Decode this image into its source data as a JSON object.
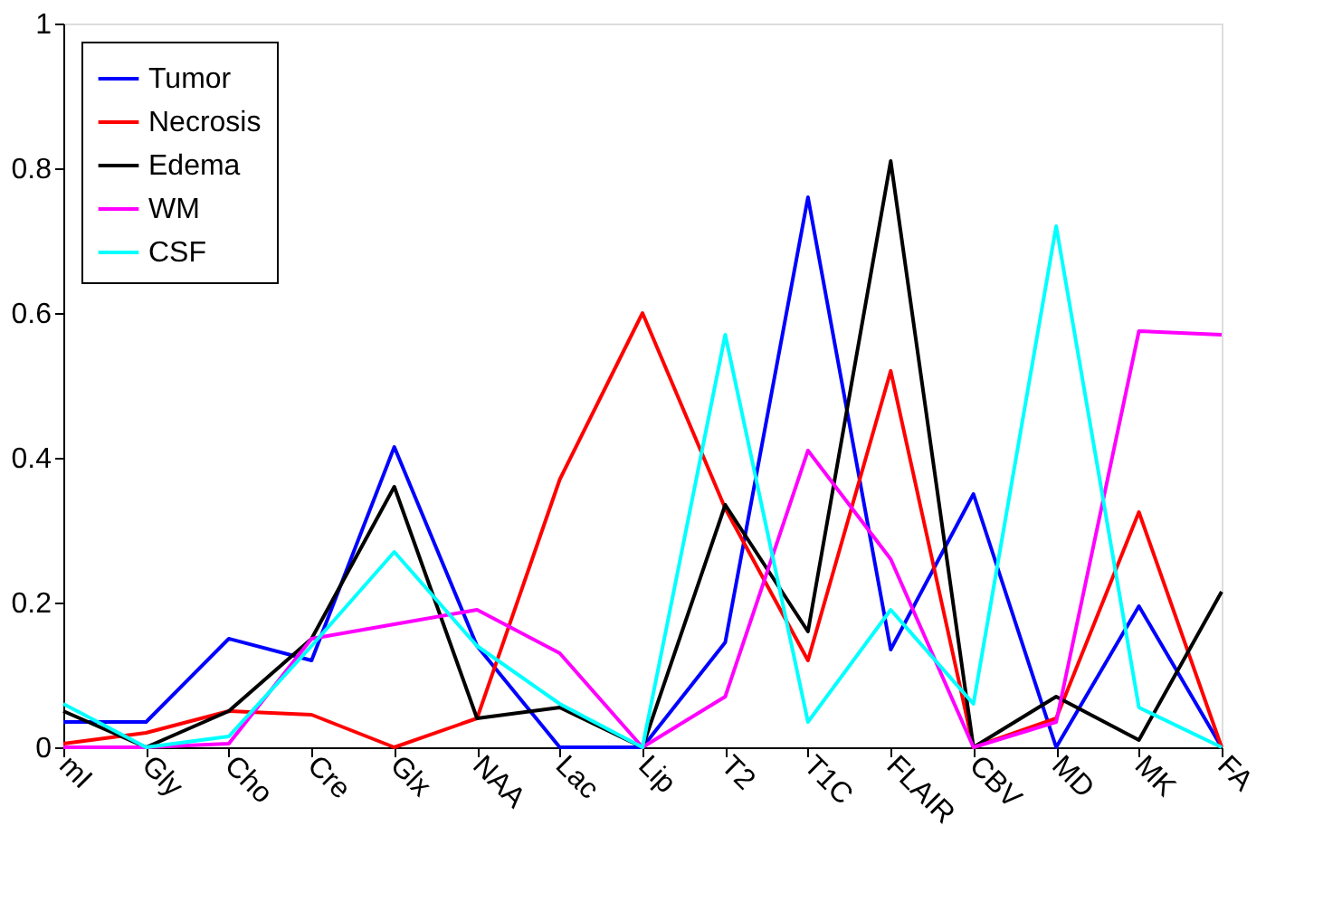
{
  "chart_data": {
    "type": "line",
    "categories": [
      "mI",
      "Gly",
      "Cho",
      "Cre",
      "Glx",
      "NAA",
      "Lac",
      "Lip",
      "T2",
      "T1C",
      "FLAIR",
      "CBV",
      "MD",
      "MK",
      "FA"
    ],
    "series": [
      {
        "name": "Tumor",
        "color": "#0000ff",
        "values": [
          0.035,
          0.035,
          0.15,
          0.12,
          0.415,
          0.14,
          0,
          0,
          0.145,
          0.76,
          0.135,
          0.35,
          0,
          0.195,
          0
        ]
      },
      {
        "name": "Necrosis",
        "color": "#ff0000",
        "values": [
          0.005,
          0.02,
          0.05,
          0.045,
          0,
          0.04,
          0.37,
          0.6,
          0.33,
          0.12,
          0.52,
          0,
          0.04,
          0.325,
          0
        ]
      },
      {
        "name": "Edema",
        "color": "#000000",
        "values": [
          0.05,
          0,
          0.05,
          0.15,
          0.36,
          0.04,
          0.055,
          0,
          0.335,
          0.16,
          0.81,
          0,
          0.07,
          0.01,
          0.215
        ]
      },
      {
        "name": "WM",
        "color": "#ff00ff",
        "values": [
          0,
          0,
          0.005,
          0.15,
          0.17,
          0.19,
          0.13,
          0,
          0.07,
          0.41,
          0.26,
          0,
          0.035,
          0.575,
          0.57
        ]
      },
      {
        "name": "CSF",
        "color": "#00ffff",
        "values": [
          0.06,
          0,
          0.015,
          0.14,
          0.27,
          0.14,
          0.06,
          0,
          0.57,
          0.035,
          0.19,
          0.06,
          0.72,
          0.055,
          0
        ]
      }
    ],
    "ylim": [
      0,
      1
    ],
    "yticks": [
      0,
      0.2,
      0.4,
      0.6,
      0.8,
      1
    ],
    "grid": false,
    "legend": "top left",
    "marker": "none",
    "line_style": "solid"
  }
}
